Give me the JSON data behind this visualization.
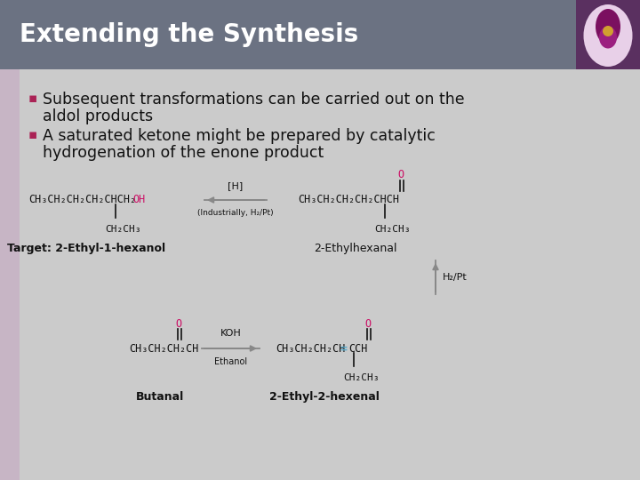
{
  "title": "Extending the Synthesis",
  "title_bg_color": "#6B7282",
  "title_text_color": "#FFFFFF",
  "body_bg_color": "#CBCBCB",
  "bullet1_line1": "Subsequent transformations can be carried out on the",
  "bullet1_line2": "aldol products",
  "bullet2_line1": "A saturated ketone might be prepared by catalytic",
  "bullet2_line2": "hydrogenation of the enone product",
  "bullet_color": "#AA2255",
  "text_color": "#111111",
  "pink_color": "#CC1166",
  "arrow_color": "#888888",
  "cyan_color": "#55AACC",
  "label1": "Target: 2-Ethyl-1-hexanol",
  "label2": "2-Ethylhexanal",
  "label3": "Butanal",
  "label4": "2-Ethyl-2-hexenal",
  "font_title": 20,
  "font_body": 12.5,
  "font_struct": 8.5,
  "font_label": 9
}
